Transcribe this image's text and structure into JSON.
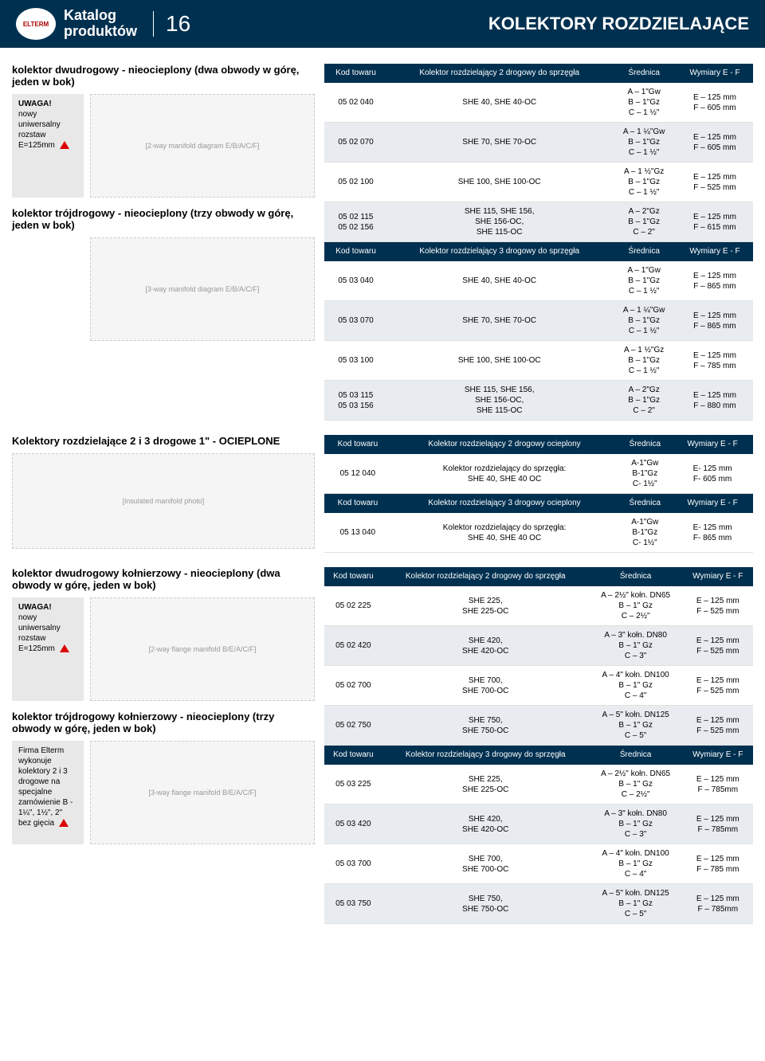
{
  "brand": "ELTERM",
  "catalog_label_line1": "Katalog",
  "catalog_label_line2": "produktów",
  "page_number": "16",
  "page_title": "KOLEKTORY ROZDZIELAJĄCE",
  "colors": {
    "header_bg": "#003050",
    "header_text": "#ffffff",
    "alt_row_bg": "#e8ecf0",
    "callout_bg": "#e8e8e8",
    "accent_red": "#d00000"
  },
  "callout1": {
    "title": "UWAGA!",
    "text": "nowy uniwersalny rozstaw E=125mm"
  },
  "callout2": {
    "title": "UWAGA!",
    "text": "nowy uniwersalny rozstaw E=125mm"
  },
  "callout3": {
    "text": "Firma Elterm wykonuje kolektory 2 i 3 drogowe na specjalne zamówienie B - 1¼\", 1½\", 2\" bez gięcia"
  },
  "section1": {
    "title": "kolektor dwudrogowy - nieocieplony (dwa obwody w górę, jeden w bok)",
    "table": {
      "headers": [
        "Kod towaru",
        "Kolektor rozdzielający 2 drogowy do sprzęgła",
        "Średnica",
        "Wymiary E - F"
      ],
      "rows": [
        {
          "code": "05 02 040",
          "name": "SHE 40, SHE 40-OC",
          "diam": "A – 1\"Gw\nB – 1\"Gz\nC – 1 ½\"",
          "dim": "E – 125 mm\nF – 605 mm"
        },
        {
          "code": "05 02 070",
          "name": "SHE 70, SHE 70-OC",
          "diam": "A – 1 ¼\"Gw\nB – 1\"Gz\nC – 1 ½\"",
          "dim": "E – 125 mm\nF – 605 mm"
        },
        {
          "code": "05 02 100",
          "name": "SHE 100, SHE 100-OC",
          "diam": "A – 1 ½\"Gz\nB – 1\"Gz\nC – 1 ½\"",
          "dim": "E – 125 mm\nF – 525 mm"
        },
        {
          "code": "05 02 115\n05 02 156",
          "name": "SHE 115, SHE 156,\nSHE 156-OC,\nSHE 115-OC",
          "diam": "A – 2\"Gz\nB – 1\"Gz\nC – 2\"",
          "dim": "E – 125 mm\nF – 615 mm"
        }
      ]
    }
  },
  "section2": {
    "title": "kolektor trójdrogowy - nieocieplony (trzy obwody w górę, jeden w bok)",
    "table": {
      "headers": [
        "Kod towaru",
        "Kolektor rozdzielający 3 drogowy do sprzęgła",
        "Średnica",
        "Wymiary E - F"
      ],
      "rows": [
        {
          "code": "05 03 040",
          "name": "SHE 40, SHE 40-OC",
          "diam": "A – 1\"Gw\nB – 1\"Gz\nC – 1 ½\"",
          "dim": "E – 125 mm\nF – 865 mm"
        },
        {
          "code": "05 03 070",
          "name": "SHE 70, SHE 70-OC",
          "diam": "A – 1 ¼\"Gw\nB – 1\"Gz\nC – 1 ½\"",
          "dim": "E – 125 mm\nF – 865 mm"
        },
        {
          "code": "05 03 100",
          "name": "SHE 100, SHE 100-OC",
          "diam": "A – 1 ½\"Gz\nB – 1\"Gz\nC – 1 ½\"",
          "dim": "E – 125 mm\nF – 785 mm"
        },
        {
          "code": "05 03 115\n05 03 156",
          "name": "SHE 115, SHE 156,\nSHE 156-OC,\nSHE 115-OC",
          "diam": "A – 2\"Gz\nB – 1\"Gz\nC – 2\"",
          "dim": "E – 125 mm\nF – 880 mm"
        }
      ]
    }
  },
  "section3": {
    "title": "Kolektory rozdzielające 2 i 3 drogowe 1\" - OCIEPLONE",
    "table1": {
      "headers": [
        "Kod towaru",
        "Kolektor rozdzielający 2 drogowy ocieplony",
        "Średnica",
        "Wymiary E - F"
      ],
      "rows": [
        {
          "code": "05 12 040",
          "name": "Kolektor rozdzielający do sprzęgła:\nSHE 40, SHE 40 OC",
          "diam": "A-1\"Gw\nB-1\"Gz\nC- 1½\"",
          "dim": "E- 125 mm\nF- 605 mm"
        }
      ]
    },
    "table2": {
      "headers": [
        "Kod towaru",
        "Kolektor rozdzielający 3 drogowy ocieplony",
        "Średnica",
        "Wymiary E - F"
      ],
      "rows": [
        {
          "code": "05 13 040",
          "name": "Kolektor rozdzielający do sprzęgła:\nSHE 40, SHE 40 OC",
          "diam": "A-1\"Gw\nB-1\"Gz\nC- 1½\"",
          "dim": "E- 125 mm\nF- 865 mm"
        }
      ]
    }
  },
  "section4": {
    "title": "kolektor dwudrogowy kołnierzowy - nieocieplony (dwa obwody w górę, jeden w bok)",
    "table": {
      "headers": [
        "Kod towaru",
        "Kolektor rozdzielający 2 drogowy do sprzęgła",
        "Średnica",
        "Wymiary E - F"
      ],
      "rows": [
        {
          "code": "05 02 225",
          "name": "SHE 225,\nSHE 225-OC",
          "diam": "A – 2½\" kołn. DN65\nB – 1\" Gz\nC – 2½\"",
          "dim": "E – 125 mm\nF – 525 mm"
        },
        {
          "code": "05 02 420",
          "name": "SHE 420,\nSHE 420-OC",
          "diam": "A – 3\" kołn. DN80\nB – 1\" Gz\nC – 3\"",
          "dim": "E – 125 mm\nF – 525 mm"
        },
        {
          "code": "05 02 700",
          "name": "SHE 700,\nSHE 700-OC",
          "diam": "A – 4\" kołn. DN100\nB – 1\" Gz\nC – 4\"",
          "dim": "E – 125 mm\nF – 525 mm"
        },
        {
          "code": "05 02 750",
          "name": "SHE 750,\nSHE 750-OC",
          "diam": "A – 5\" kołn. DN125\nB – 1\" Gz\nC – 5\"",
          "dim": "E – 125 mm\nF – 525 mm"
        }
      ]
    }
  },
  "section5": {
    "title": "kolektor trójdrogowy kołnierzowy - nieocieplony (trzy obwody w górę, jeden w bok)",
    "table": {
      "headers": [
        "Kod towaru",
        "Kolektor rozdzielający 3 drogowy do sprzęgła",
        "Średnica",
        "Wymiary E - F"
      ],
      "rows": [
        {
          "code": "05 03 225",
          "name": "SHE 225,\nSHE 225-OC",
          "diam": "A – 2½\" kołn. DN65\nB – 1\" Gz\nC – 2½\"",
          "dim": "E – 125 mm\nF – 785mm"
        },
        {
          "code": "05 03 420",
          "name": "SHE 420,\nSHE 420-OC",
          "diam": "A – 3\" kołn. DN80\nB – 1\" Gz\nC – 3\"",
          "dim": "E – 125 mm\nF – 785mm"
        },
        {
          "code": "05 03 700",
          "name": "SHE 700,\nSHE 700-OC",
          "diam": "A – 4\" kołn. DN100\nB – 1\" Gz\nC – 4\"",
          "dim": "E – 125 mm\nF – 785 mm"
        },
        {
          "code": "05 03 750",
          "name": "SHE 750,\nSHE 750-OC",
          "diam": "A – 5\" kołn. DN125\nB – 1\" Gz\nC – 5\"",
          "dim": "E – 125 mm\nF – 785mm"
        }
      ]
    }
  },
  "diagram_labels": [
    "A",
    "B",
    "C",
    "E",
    "F"
  ]
}
